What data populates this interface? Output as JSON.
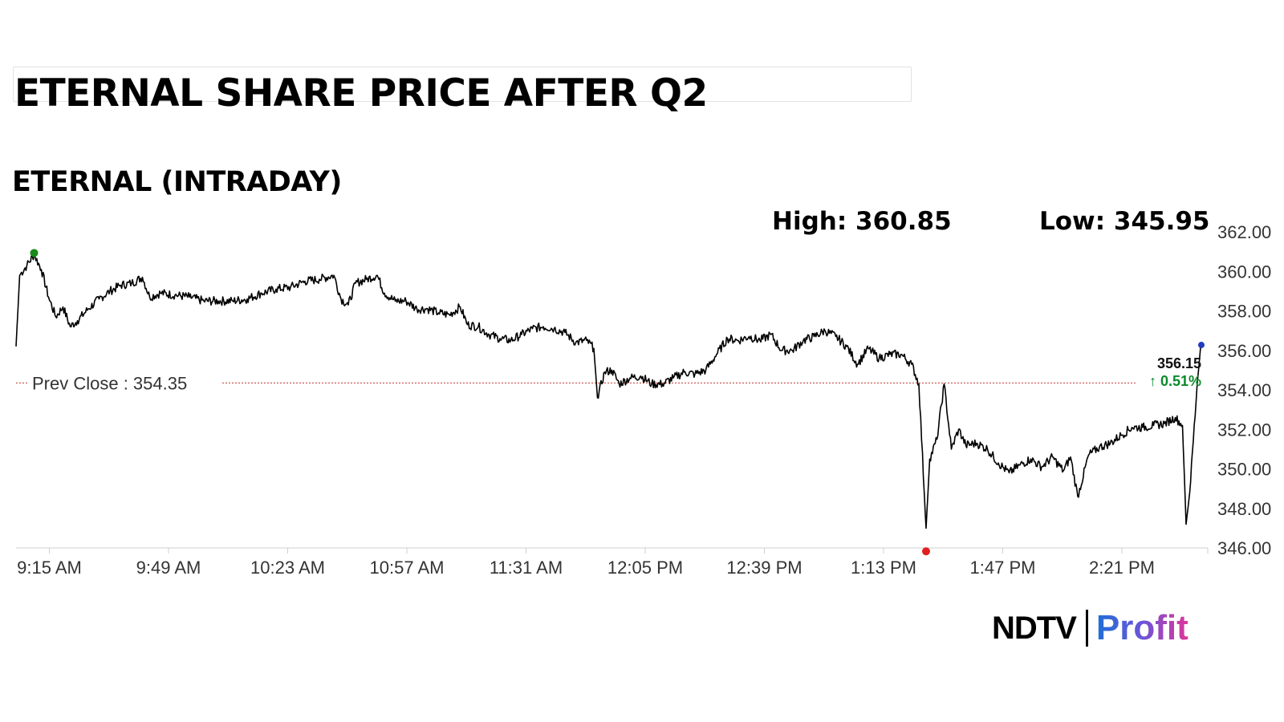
{
  "title": "ETERNAL SHARE PRICE AFTER Q2",
  "chart_heading": "ETERNAL (INTRADAY)",
  "stats": {
    "high": "High: 360.85",
    "low": "Low: 345.95"
  },
  "logo": {
    "brand": "NDTV",
    "product": "Profit"
  },
  "colors": {
    "line": "#000000",
    "prev_close": "#c0392b",
    "high_marker": "#1a8a1a",
    "low_marker": "#e02020",
    "last_marker": "#1f3fbf",
    "change_up": "#0c8a2a"
  },
  "chart_data": {
    "type": "line",
    "title": "ETERNAL (INTRADAY)",
    "ylim": [
      346,
      362
    ],
    "y_ticks": [
      "362.00",
      "360.00",
      "358.00",
      "356.00",
      "354.00",
      "352.00",
      "350.00",
      "348.00",
      "346.00"
    ],
    "x_ticks": [
      "9:15 AM",
      "9:49 AM",
      "10:23 AM",
      "10:57 AM",
      "11:31 AM",
      "12:05 PM",
      "12:39 PM",
      "1:13 PM",
      "1:47 PM",
      "2:21 PM"
    ],
    "prev_close": {
      "value": 354.35,
      "label": "Prev Close : 354.35"
    },
    "high": 360.85,
    "low": 345.95,
    "last": {
      "value": 356.15,
      "label": "356.15",
      "change": "↑ 0.51%"
    },
    "grid": false,
    "x_unit": "minutes after 9:15 AM",
    "points": [
      [
        0,
        356.2
      ],
      [
        1,
        359.8
      ],
      [
        3,
        360.3
      ],
      [
        5,
        360.85
      ],
      [
        7,
        360.1
      ],
      [
        9,
        358.7
      ],
      [
        11,
        357.7
      ],
      [
        13,
        358.2
      ],
      [
        15,
        357.2
      ],
      [
        17,
        357.5
      ],
      [
        20,
        358.1
      ],
      [
        23,
        358.6
      ],
      [
        26,
        359.0
      ],
      [
        29,
        359.3
      ],
      [
        32,
        359.4
      ],
      [
        35,
        359.7
      ],
      [
        37,
        358.7
      ],
      [
        40,
        358.9
      ],
      [
        44,
        358.8
      ],
      [
        48,
        358.7
      ],
      [
        52,
        358.5
      ],
      [
        56,
        358.5
      ],
      [
        60,
        358.5
      ],
      [
        64,
        358.6
      ],
      [
        68,
        358.9
      ],
      [
        72,
        359.1
      ],
      [
        76,
        359.2
      ],
      [
        80,
        359.5
      ],
      [
        84,
        359.6
      ],
      [
        88,
        359.8
      ],
      [
        90,
        358.6
      ],
      [
        92,
        358.3
      ],
      [
        94,
        359.4
      ],
      [
        97,
        359.6
      ],
      [
        100,
        359.8
      ],
      [
        102,
        358.9
      ],
      [
        105,
        358.5
      ],
      [
        108,
        358.5
      ],
      [
        111,
        358.1
      ],
      [
        114,
        358.1
      ],
      [
        117,
        357.9
      ],
      [
        120,
        357.8
      ],
      [
        123,
        358.2
      ],
      [
        125,
        357.3
      ],
      [
        128,
        357.2
      ],
      [
        131,
        356.8
      ],
      [
        134,
        356.6
      ],
      [
        137,
        356.5
      ],
      [
        140,
        356.8
      ],
      [
        143,
        357.1
      ],
      [
        146,
        357.2
      ],
      [
        149,
        357.1
      ],
      [
        152,
        356.9
      ],
      [
        155,
        356.4
      ],
      [
        158,
        356.5
      ],
      [
        160,
        356.1
      ],
      [
        161,
        353.6
      ],
      [
        163,
        354.9
      ],
      [
        165,
        355.0
      ],
      [
        167,
        354.3
      ],
      [
        170,
        354.6
      ],
      [
        173,
        354.7
      ],
      [
        176,
        354.3
      ],
      [
        179,
        354.3
      ],
      [
        182,
        354.6
      ],
      [
        185,
        354.9
      ],
      [
        188,
        354.8
      ],
      [
        191,
        355.0
      ],
      [
        194,
        355.8
      ],
      [
        197,
        356.6
      ],
      [
        200,
        356.5
      ],
      [
        203,
        356.7
      ],
      [
        206,
        356.5
      ],
      [
        209,
        356.8
      ],
      [
        212,
        356.0
      ],
      [
        215,
        356.0
      ],
      [
        218,
        356.5
      ],
      [
        221,
        356.7
      ],
      [
        224,
        357.0
      ],
      [
        227,
        356.7
      ],
      [
        230,
        356.2
      ],
      [
        233,
        355.3
      ],
      [
        236,
        356.1
      ],
      [
        239,
        355.6
      ],
      [
        242,
        355.8
      ],
      [
        245,
        355.8
      ],
      [
        248,
        355.3
      ],
      [
        250,
        354.3
      ],
      [
        252,
        347.0
      ],
      [
        253,
        350.5
      ],
      [
        255,
        351.5
      ],
      [
        257,
        354.3
      ],
      [
        259,
        351.0
      ],
      [
        261,
        352.0
      ],
      [
        263,
        351.2
      ],
      [
        266,
        351.3
      ],
      [
        269,
        351.0
      ],
      [
        272,
        350.3
      ],
      [
        275,
        349.8
      ],
      [
        278,
        350.2
      ],
      [
        281,
        350.5
      ],
      [
        284,
        350.1
      ],
      [
        287,
        350.6
      ],
      [
        290,
        349.9
      ],
      [
        292,
        350.6
      ],
      [
        294,
        348.6
      ],
      [
        297,
        350.7
      ],
      [
        300,
        351.1
      ],
      [
        303,
        351.3
      ],
      [
        306,
        351.7
      ],
      [
        309,
        352.1
      ],
      [
        312,
        352.1
      ],
      [
        315,
        352.2
      ],
      [
        318,
        352.3
      ],
      [
        321,
        352.6
      ],
      [
        323,
        352.2
      ],
      [
        324,
        347.2
      ],
      [
        325,
        348.8
      ],
      [
        327,
        354.1
      ],
      [
        328,
        356.15
      ]
    ]
  }
}
